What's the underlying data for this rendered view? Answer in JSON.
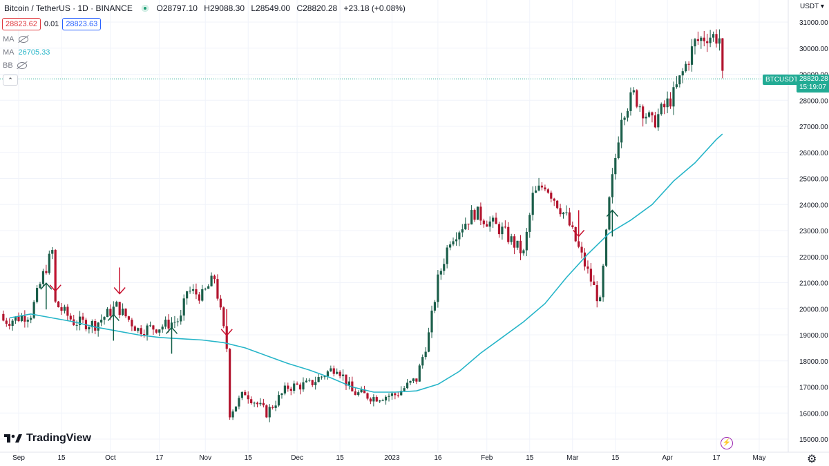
{
  "header": {
    "symbol_title": "Bitcoin / TetherUS · 1D · BINANCE",
    "o_label": "O",
    "o_value": "28797.10",
    "h_label": "H",
    "h_value": "29088.30",
    "l_label": "L",
    "l_value": "28549.00",
    "c_label": "C",
    "c_value": "28820.28",
    "change": "+23.18 (+0.08%)"
  },
  "order_panel": {
    "sell_price": "28823.62",
    "spread": "0.01",
    "buy_price": "28823.63"
  },
  "indicators": [
    {
      "name": "MA",
      "value": "",
      "hidden": true
    },
    {
      "name": "MA",
      "value": "26705.33",
      "hidden": false
    },
    {
      "name": "BB",
      "value": "",
      "hidden": true
    }
  ],
  "collapse_label": "⌃",
  "currency_label": "USDT",
  "price_label": {
    "symbol": "BTCUSDT",
    "price": "28820.28",
    "countdown": "15:19:07"
  },
  "brand": "TradingView",
  "colors": {
    "up": "#1b5e4a",
    "down": "#b2142e",
    "ma": "#26b5c8",
    "tag": "#22ab94",
    "arrow_down": "#c8102e",
    "arrow_up": "#0f5c44"
  },
  "chart_data": {
    "type": "candlestick",
    "title": "Bitcoin / TetherUS · 1D · BINANCE",
    "ylim": [
      14700,
      31100
    ],
    "y_ticks": [
      "31000.00",
      "30000.00",
      "29000.00",
      "28000.00",
      "27000.00",
      "26000.00",
      "25000.00",
      "24000.00",
      "23000.00",
      "22000.00",
      "21000.00",
      "20000.00",
      "19000.00",
      "18000.00",
      "17000.00",
      "16000.00",
      "15000.00"
    ],
    "x_ticks": [
      "Sep",
      "15",
      "Oct",
      "17",
      "Nov",
      "15",
      "Dec",
      "15",
      "2023",
      "16",
      "Feb",
      "15",
      "Mar",
      "15",
      "Apr",
      "17",
      "May"
    ],
    "grid": true,
    "last_price": 28820.28,
    "close_series": [
      {
        "date": "2022-08-29",
        "close": 19550
      },
      {
        "date": "2022-09-05",
        "close": 19800
      },
      {
        "date": "2022-09-09",
        "close": 21300
      },
      {
        "date": "2022-09-12",
        "close": 22200
      },
      {
        "date": "2022-09-13",
        "close": 20200
      },
      {
        "date": "2022-09-19",
        "close": 19500
      },
      {
        "date": "2022-09-26",
        "close": 19400
      },
      {
        "date": "2022-10-03",
        "close": 20100
      },
      {
        "date": "2022-10-10",
        "close": 19200
      },
      {
        "date": "2022-10-17",
        "close": 19300
      },
      {
        "date": "2022-10-24",
        "close": 19600
      },
      {
        "date": "2022-10-26",
        "close": 20700
      },
      {
        "date": "2022-10-31",
        "close": 20500
      },
      {
        "date": "2022-11-04",
        "close": 21200
      },
      {
        "date": "2022-11-08",
        "close": 18500
      },
      {
        "date": "2022-11-09",
        "close": 16000
      },
      {
        "date": "2022-11-14",
        "close": 16800
      },
      {
        "date": "2022-11-21",
        "close": 16000
      },
      {
        "date": "2022-11-28",
        "close": 17000
      },
      {
        "date": "2022-12-05",
        "close": 17100
      },
      {
        "date": "2022-12-14",
        "close": 17800
      },
      {
        "date": "2022-12-19",
        "close": 16800
      },
      {
        "date": "2022-12-26",
        "close": 16600
      },
      {
        "date": "2023-01-02",
        "close": 16700
      },
      {
        "date": "2023-01-09",
        "close": 17300
      },
      {
        "date": "2023-01-13",
        "close": 19000
      },
      {
        "date": "2023-01-16",
        "close": 21100
      },
      {
        "date": "2023-01-20",
        "close": 22700
      },
      {
        "date": "2023-01-28",
        "close": 23700
      },
      {
        "date": "2023-02-06",
        "close": 23000
      },
      {
        "date": "2023-02-13",
        "close": 22100
      },
      {
        "date": "2023-02-16",
        "close": 24300
      },
      {
        "date": "2023-02-20",
        "close": 24800
      },
      {
        "date": "2023-02-27",
        "close": 23500
      },
      {
        "date": "2023-03-03",
        "close": 22300
      },
      {
        "date": "2023-03-10",
        "close": 20200
      },
      {
        "date": "2023-03-13",
        "close": 24100
      },
      {
        "date": "2023-03-17",
        "close": 27500
      },
      {
        "date": "2023-03-21",
        "close": 28200
      },
      {
        "date": "2023-03-27",
        "close": 27100
      },
      {
        "date": "2023-04-03",
        "close": 28200
      },
      {
        "date": "2023-04-10",
        "close": 30200
      },
      {
        "date": "2023-04-14",
        "close": 30500
      },
      {
        "date": "2023-04-18",
        "close": 30400
      },
      {
        "date": "2023-04-19",
        "close": 28820
      }
    ],
    "ma_series": [
      {
        "date": "2022-08-29",
        "value": 19650
      },
      {
        "date": "2022-09-05",
        "value": 19800
      },
      {
        "date": "2022-09-12",
        "value": 19650
      },
      {
        "date": "2022-09-19",
        "value": 19500
      },
      {
        "date": "2022-09-26",
        "value": 19300
      },
      {
        "date": "2022-10-03",
        "value": 19150
      },
      {
        "date": "2022-10-10",
        "value": 19000
      },
      {
        "date": "2022-10-17",
        "value": 18900
      },
      {
        "date": "2022-10-24",
        "value": 18850
      },
      {
        "date": "2022-10-31",
        "value": 18800
      },
      {
        "date": "2022-11-07",
        "value": 18700
      },
      {
        "date": "2022-11-14",
        "value": 18500
      },
      {
        "date": "2022-11-21",
        "value": 18200
      },
      {
        "date": "2022-11-28",
        "value": 17900
      },
      {
        "date": "2022-12-05",
        "value": 17650
      },
      {
        "date": "2022-12-12",
        "value": 17350
      },
      {
        "date": "2022-12-19",
        "value": 17000
      },
      {
        "date": "2022-12-26",
        "value": 16800
      },
      {
        "date": "2023-01-02",
        "value": 16800
      },
      {
        "date": "2023-01-09",
        "value": 16850
      },
      {
        "date": "2023-01-16",
        "value": 17100
      },
      {
        "date": "2023-01-23",
        "value": 17600
      },
      {
        "date": "2023-01-30",
        "value": 18300
      },
      {
        "date": "2023-02-06",
        "value": 18900
      },
      {
        "date": "2023-02-13",
        "value": 19500
      },
      {
        "date": "2023-02-20",
        "value": 20200
      },
      {
        "date": "2023-02-27",
        "value": 21200
      },
      {
        "date": "2023-03-06",
        "value": 22100
      },
      {
        "date": "2023-03-13",
        "value": 22900
      },
      {
        "date": "2023-03-20",
        "value": 23400
      },
      {
        "date": "2023-03-27",
        "value": 24000
      },
      {
        "date": "2023-04-03",
        "value": 24900
      },
      {
        "date": "2023-04-10",
        "value": 25600
      },
      {
        "date": "2023-04-17",
        "value": 26500
      },
      {
        "date": "2023-04-19",
        "value": 26705
      }
    ],
    "signals": [
      {
        "date": "2022-09-13",
        "direction": "down"
      },
      {
        "date": "2022-09-10",
        "direction": "up"
      },
      {
        "date": "2022-10-04",
        "direction": "down"
      },
      {
        "date": "2022-10-02",
        "direction": "up"
      },
      {
        "date": "2022-10-21",
        "direction": "up"
      },
      {
        "date": "2022-11-08",
        "direction": "down"
      },
      {
        "date": "2023-03-03",
        "direction": "down"
      },
      {
        "date": "2023-03-14",
        "direction": "up"
      }
    ]
  }
}
